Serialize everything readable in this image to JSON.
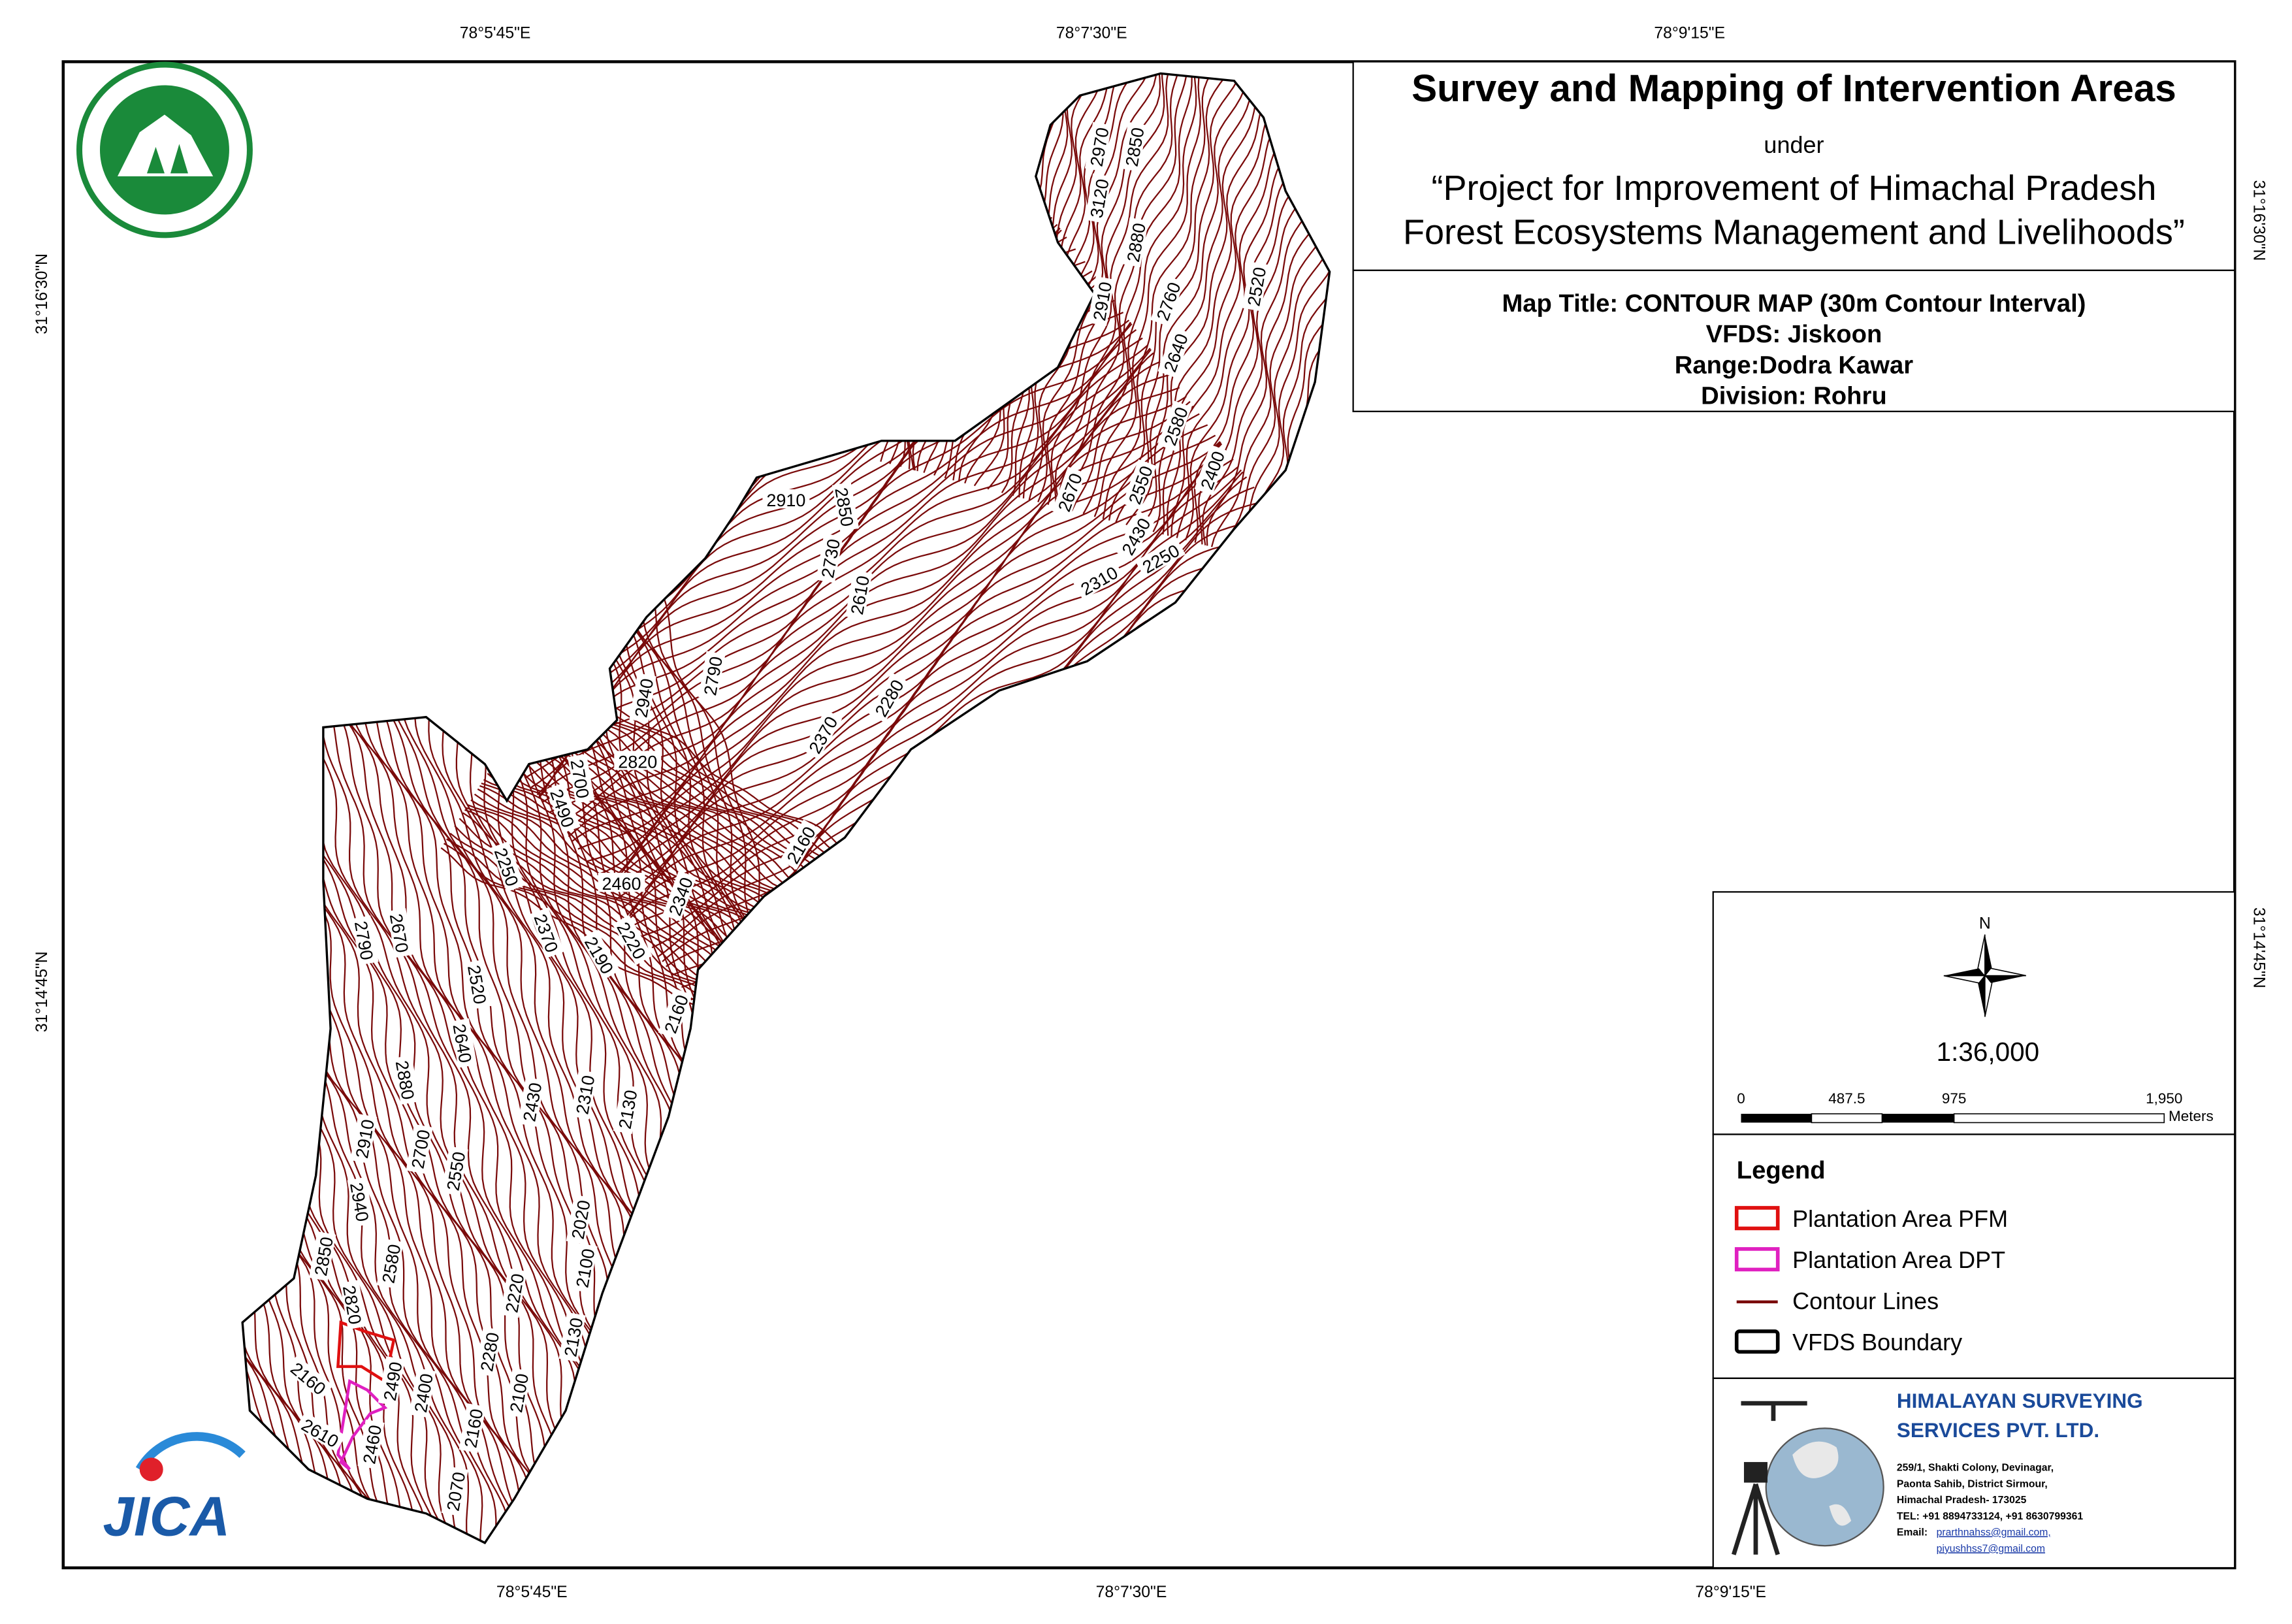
{
  "header": {
    "title": "Survey and Mapping of Intervention Areas",
    "under": "under",
    "project_line1": "“Project for Improvement of Himachal Pradesh",
    "project_line2": "Forest Ecosystems Management and Livelihoods”"
  },
  "map_info": {
    "map_title": "Map Title: CONTOUR MAP (30m Contour Interval)",
    "vfds": "VFDS: Jiskoon",
    "range": "Range:Dodra Kawar",
    "division": "Division: Rohru"
  },
  "coordinates": {
    "top": [
      "78°5'45\"E",
      "78°7'30\"E",
      "78°9'15\"E"
    ],
    "bottom": [
      "78°5'45\"E",
      "78°7'30\"E",
      "78°9'15\"E"
    ],
    "left": [
      "31°16'30\"N",
      "31°14'45\"N"
    ],
    "right": [
      "31°16'30\"N",
      "31°14'45\"N"
    ]
  },
  "contour_labels": [
    "2970",
    "2850",
    "3120",
    "2880",
    "2910",
    "2760",
    "2520",
    "2640",
    "2580",
    "2400",
    "2670",
    "2550",
    "2430",
    "2250",
    "2310",
    "2910",
    "2850",
    "2730",
    "2610",
    "2790",
    "2940",
    "2280",
    "2370",
    "2820",
    "2700",
    "2490",
    "2160",
    "2460",
    "2340",
    "2250",
    "2370",
    "2220",
    "2190",
    "2160",
    "2670",
    "2790",
    "2520",
    "2640",
    "2880",
    "2430",
    "2310",
    "2130",
    "2910",
    "2700",
    "2550",
    "2940",
    "2020",
    "2100",
    "2850",
    "2580",
    "2220",
    "2820",
    "2130",
    "2280",
    "2490",
    "2160",
    "2400",
    "2100",
    "2610",
    "2460",
    "2160",
    "2070"
  ],
  "north": "N",
  "scale": "1:36,000",
  "scale_bar": {
    "ticks": [
      "0",
      "487.5",
      "975",
      "1,950"
    ],
    "unit": "Meters"
  },
  "legend": {
    "title": "Legend",
    "items": [
      "Plantation Area PFM",
      "Plantation Area DPT",
      "Contour Lines",
      "VFDS Boundary"
    ]
  },
  "company": {
    "name_line1": "HIMALAYAN SURVEYING",
    "name_line2": "SERVICES PVT. LTD.",
    "address": [
      "259/1, Shakti Colony, Devinagar,",
      "Paonta Sahib, District Sirmour,",
      "Himachal Pradesh- 173025"
    ],
    "phone": "TEL: +91 8894733124, +91 8630799361",
    "email_label": "Email:",
    "emails": [
      "prarthnahss@gmail.com,",
      "piyushhss7@gmail.com"
    ]
  },
  "logos": {
    "jica": "JICA"
  }
}
